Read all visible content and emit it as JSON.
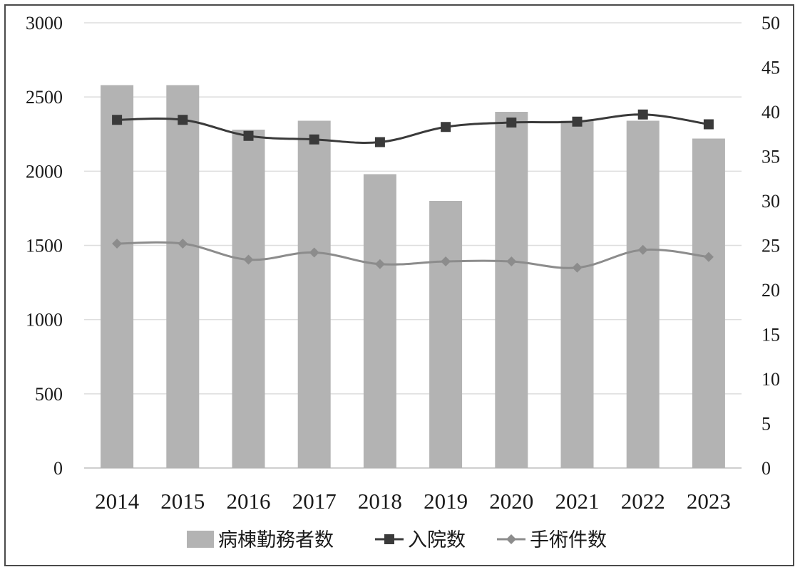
{
  "chart_data": {
    "type": "bar",
    "title": "",
    "categories": [
      "2014",
      "2015",
      "2016",
      "2017",
      "2018",
      "2019",
      "2020",
      "2021",
      "2022",
      "2023"
    ],
    "series": [
      {
        "name": "病棟勤務者数",
        "type": "bar",
        "axis": "left",
        "values": [
          2580,
          2580,
          2280,
          2340,
          1980,
          1800,
          2400,
          2340,
          2340,
          2220
        ],
        "color": "#b3b3b3"
      },
      {
        "name": "入院数",
        "type": "line",
        "axis": "right",
        "marker": "square",
        "values": [
          39.1,
          39.1,
          37.3,
          36.9,
          36.6,
          38.3,
          38.8,
          38.9,
          39.7,
          38.6
        ],
        "color": "#3a3a3a"
      },
      {
        "name": "手術件数",
        "type": "line",
        "axis": "right",
        "marker": "diamond",
        "values": [
          25.2,
          25.2,
          23.4,
          24.2,
          22.9,
          23.2,
          23.2,
          22.5,
          24.5,
          23.7
        ],
        "color": "#8c8c8c"
      }
    ],
    "y_left": {
      "min": 0,
      "max": 3000,
      "ticks": [
        "0",
        "500",
        "1000",
        "1500",
        "2000",
        "2500",
        "3000"
      ]
    },
    "y_right": {
      "min": 0,
      "max": 50,
      "ticks": [
        "0",
        "5",
        "10",
        "15",
        "20",
        "25",
        "30",
        "35",
        "40",
        "45",
        "50"
      ]
    },
    "grid": true,
    "legend_position": "bottom"
  }
}
